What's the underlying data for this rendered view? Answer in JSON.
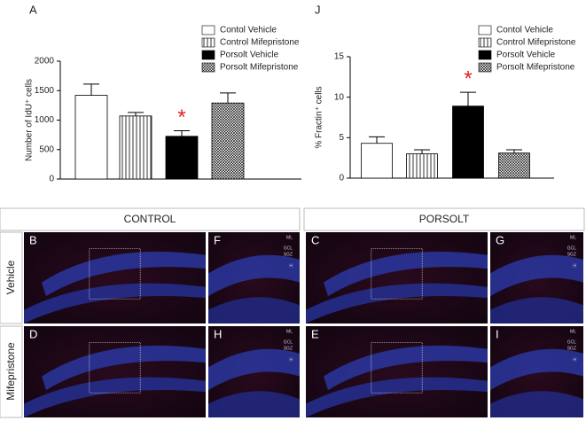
{
  "chart_data": [
    {
      "type": "bar",
      "panel": "A",
      "ylabel": "Number of IdU⁺ cells",
      "ylim": [
        0,
        2000
      ],
      "yticks": [
        0,
        500,
        1000,
        1500,
        2000
      ],
      "series": [
        {
          "name": "Contol Vehicle",
          "color": "#ffffff",
          "pattern": "none",
          "values": [
            1420
          ],
          "errors": [
            190
          ]
        },
        {
          "name": "Control Mifepristone",
          "color": "#ffffff",
          "pattern": "vertical-lines",
          "values": [
            1070
          ],
          "errors": [
            60
          ]
        },
        {
          "name": "Porsolt Vehicle",
          "color": "#000000",
          "pattern": "none",
          "values": [
            725
          ],
          "errors": [
            95
          ],
          "annotation": "*"
        },
        {
          "name": "Porsolt Mifepristone",
          "color": "#ffffff",
          "pattern": "crosshatch",
          "values": [
            1290
          ],
          "errors": [
            170
          ]
        }
      ]
    },
    {
      "type": "bar",
      "panel": "J",
      "ylabel": "% Fractin⁺ cells",
      "ylim": [
        0,
        15
      ],
      "yticks": [
        0,
        5,
        10,
        15
      ],
      "series": [
        {
          "name": "Contol Vehicle",
          "color": "#ffffff",
          "pattern": "none",
          "values": [
            4.3
          ],
          "errors": [
            0.8
          ]
        },
        {
          "name": "Control Mifepristone",
          "color": "#ffffff",
          "pattern": "vertical-lines",
          "values": [
            3.0
          ],
          "errors": [
            0.5
          ]
        },
        {
          "name": "Porsolt Vehicle",
          "color": "#000000",
          "pattern": "none",
          "values": [
            8.9
          ],
          "errors": [
            1.7
          ],
          "annotation": "*"
        },
        {
          "name": "Porsolt Mifepristone",
          "color": "#ffffff",
          "pattern": "crosshatch",
          "values": [
            3.1
          ],
          "errors": [
            0.4
          ]
        }
      ]
    }
  ],
  "figure": {
    "columns": [
      "CONTROL",
      "PORSOLT"
    ],
    "rows": [
      "Vehicle",
      "Mifepristone"
    ],
    "panels": [
      "B",
      "F",
      "C",
      "G",
      "D",
      "H",
      "E",
      "I"
    ],
    "layers": [
      "ML",
      "GCL",
      "SGZ",
      "H"
    ]
  }
}
